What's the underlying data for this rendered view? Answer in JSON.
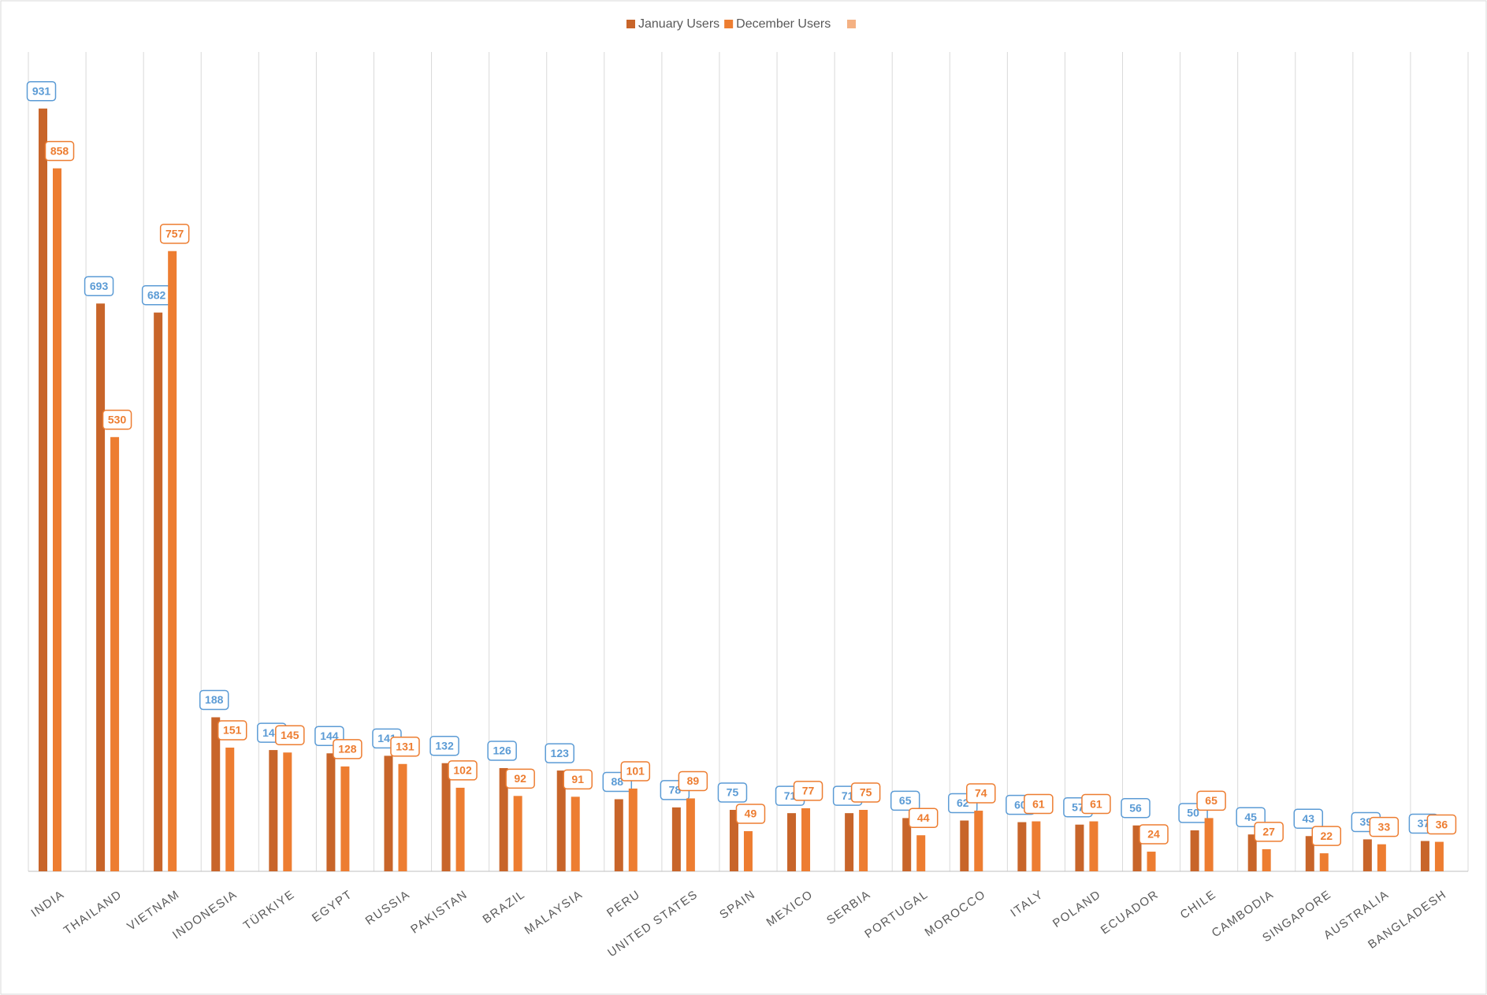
{
  "chart_data": {
    "type": "bar",
    "categories": [
      "INDIA",
      "THAILAND",
      "VIETNAM",
      "INDONESIA",
      "TÜRKIYE",
      "EGYPT",
      "RUSSIA",
      "PAKISTAN",
      "BRAZIL",
      "MALAYSIA",
      "PERU",
      "UNITED STATES",
      "SPAIN",
      "MEXICO",
      "SERBIA",
      "PORTUGAL",
      "MOROCCO",
      "ITALY",
      "POLAND",
      "ECUADOR",
      "CHILE",
      "CAMBODIA",
      "SINGAPORE",
      "AUSTRALIA",
      "BANGLADESH"
    ],
    "series": [
      {
        "name": "January Users",
        "color": "#c8652a",
        "label_color": "#5b9bd5",
        "values": [
          931,
          693,
          682,
          188,
          148,
          144,
          141,
          132,
          126,
          123,
          88,
          78,
          75,
          71,
          71,
          65,
          62,
          60,
          57,
          56,
          50,
          45,
          43,
          39,
          37
        ]
      },
      {
        "name": "December Users",
        "color": "#ed7d31",
        "label_color": "#ed7d31",
        "values": [
          858,
          530,
          757,
          151,
          145,
          128,
          131,
          102,
          92,
          91,
          101,
          89,
          49,
          77,
          75,
          44,
          74,
          61,
          61,
          24,
          65,
          27,
          22,
          33,
          36
        ]
      }
    ],
    "ylim": [
      0,
      1000
    ]
  }
}
